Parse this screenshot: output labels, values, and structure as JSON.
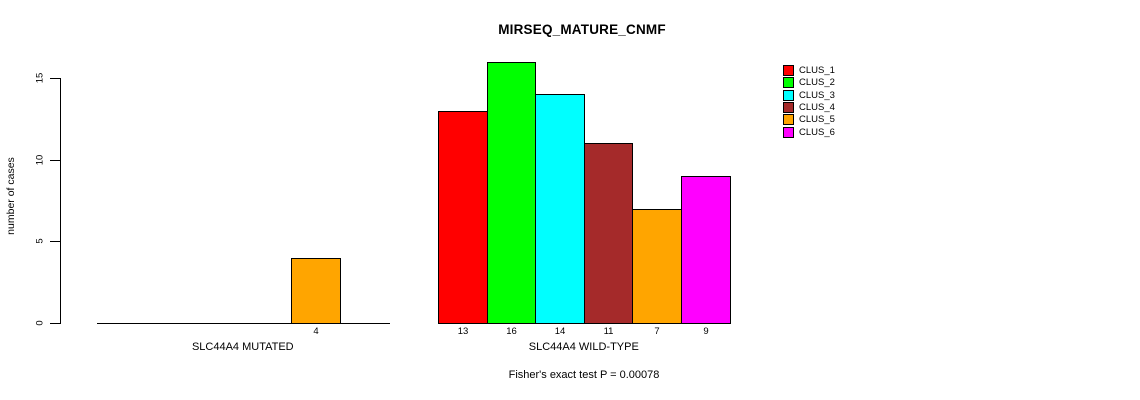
{
  "chart_data": {
    "type": "bar",
    "title": "MIRSEQ_MATURE_CNMF",
    "ylabel": "number of cases",
    "yticks": [
      0,
      5,
      10,
      15
    ],
    "ylim": [
      0,
      16.5
    ],
    "grid": false,
    "legend_position": "right",
    "clusters": [
      {
        "name": "CLUS_1",
        "color": "#FF0000"
      },
      {
        "name": "CLUS_2",
        "color": "#00FF00"
      },
      {
        "name": "CLUS_3",
        "color": "#00FFFF"
      },
      {
        "name": "CLUS_4",
        "color": "#A52A2A"
      },
      {
        "name": "CLUS_5",
        "color": "#FFA500"
      },
      {
        "name": "CLUS_6",
        "color": "#FF00FF"
      }
    ],
    "groups": [
      {
        "label": "SLC44A4 MUTATED",
        "values": [
          0,
          0,
          0,
          0,
          4,
          0
        ]
      },
      {
        "label": "SLC44A4 WILD-TYPE",
        "values": [
          13,
          16,
          14,
          11,
          7,
          9
        ]
      }
    ],
    "footnote": "Fisher's exact test P = 0.00078",
    "axis_color": "#000000",
    "background_color": "#FFFFFF"
  }
}
